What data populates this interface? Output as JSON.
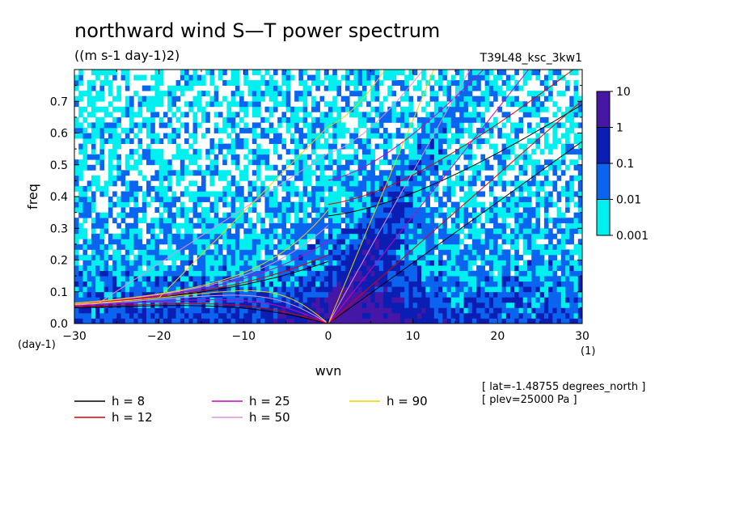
{
  "chart_data": {
    "type": "heatmap",
    "title": "northward wind S—T power spectrum",
    "units_label": "((m s-1 day-1)2)",
    "run_label": "T39L48_ksc_3kw1",
    "xlabel": "wvn",
    "ylabel": "freq",
    "y_unit_label": "(day-1)",
    "x_unit_label": "(1)",
    "xlim": [
      -30,
      30
    ],
    "ylim": [
      0,
      0.8
    ],
    "x_ticks": [
      -30,
      -20,
      -10,
      0,
      10,
      20,
      30
    ],
    "x_tick_labels": [
      "−30",
      "−20",
      "−10",
      "0",
      "10",
      "20",
      "30"
    ],
    "y_ticks": [
      0,
      0.1,
      0.2,
      0.3,
      0.4,
      0.5,
      0.6,
      0.7
    ],
    "y_tick_labels": [
      "0.0",
      "0.1",
      "0.2",
      "0.3",
      "0.4",
      "0.5",
      "0.6",
      "0.7"
    ],
    "colorbar": {
      "levels": [
        0.001,
        0.01,
        0.1,
        1,
        10
      ],
      "labels": [
        "0.001",
        "0.01",
        "0.1",
        "1",
        "10"
      ],
      "colors": [
        "#00f0f0",
        "#0a64f0",
        "#0a1eb4",
        "#4616a6"
      ]
    },
    "dispersion_curves": [
      {
        "label": "h =  8",
        "h": 8,
        "color": "#000000"
      },
      {
        "label": "h = 12",
        "h": 12,
        "color": "#e00000"
      },
      {
        "label": "h = 25",
        "h": 25,
        "color": "#d000c0"
      },
      {
        "label": "h = 50",
        "h": 50,
        "color": "#e090e0"
      },
      {
        "label": "h = 90",
        "h": 90,
        "color": "#f0d000"
      }
    ],
    "annotations": [
      "[ lat=-1.48755 degrees_north ]",
      "[ plev=25000 Pa ]"
    ]
  }
}
